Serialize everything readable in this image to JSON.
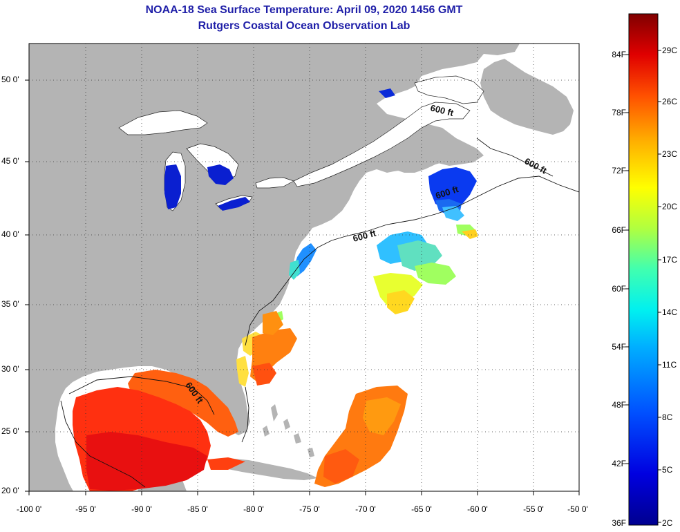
{
  "header": {
    "title_line1": "NOAA-18 Sea Surface Temperature:  April 09, 2020 1456 GMT",
    "title_line2": "Rutgers Coastal Ocean Observation Lab"
  },
  "map": {
    "longitude_ticks": [
      "-100 0'",
      "-95 0'",
      "-90 0'",
      "-85 0'",
      "-80 0'",
      "-75 0'",
      "-70 0'",
      "-65 0'",
      "-60 0'",
      "-55 0'",
      "-50 0'"
    ],
    "latitude_ticks": [
      "50 0'",
      "45 0'",
      "40 0'",
      "35 0'",
      "30 0'",
      "25 0'",
      "20 0'"
    ],
    "contour_labels": [
      "600 ft",
      "600 ft",
      "600 ft",
      "600 ft",
      "600 ft"
    ],
    "colors": {
      "land": "#b4b4b4",
      "ocean": "#ffffff",
      "grid": "#333333"
    }
  },
  "colorbar": {
    "fahrenheit_labels": [
      "84F",
      "78F",
      "72F",
      "66F",
      "60F",
      "54F",
      "48F",
      "42F",
      "36F"
    ],
    "celsius_labels": [
      "29C",
      "26C",
      "23C",
      "20C",
      "17C",
      "14C",
      "11C",
      "8C",
      "5C",
      "2C"
    ]
  }
}
